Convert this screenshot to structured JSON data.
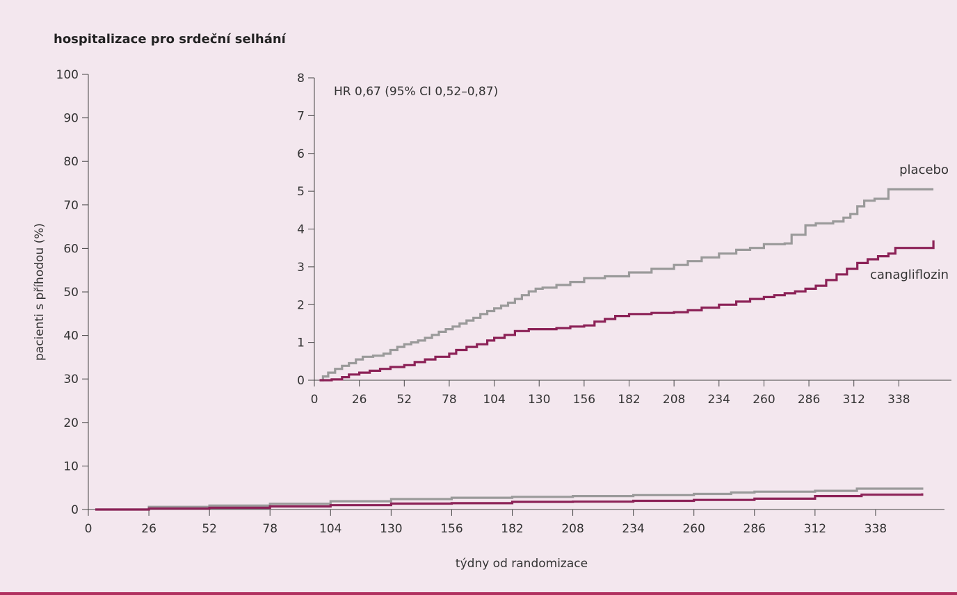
{
  "chart_data": [
    {
      "type": "line",
      "title": "hospitalizace pro srdeční selhání",
      "xlabel": "týdny od randomizace",
      "ylabel": "pacienti s příhodou (%)",
      "xlim": [
        0,
        364
      ],
      "ylim": [
        0,
        100
      ],
      "xticks": [
        0,
        26,
        52,
        78,
        104,
        130,
        156,
        182,
        208,
        234,
        260,
        286,
        312,
        338
      ],
      "yticks": [
        0,
        10,
        20,
        30,
        40,
        50,
        60,
        70,
        80,
        90,
        100
      ],
      "series": [
        {
          "key": "placebo",
          "color": "#9a9a9a",
          "x": [
            3,
            26,
            52,
            78,
            104,
            130,
            156,
            182,
            208,
            234,
            260,
            276,
            286,
            312,
            330,
            358
          ],
          "y": [
            0,
            0.6,
            0.9,
            1.3,
            1.9,
            2.4,
            2.7,
            2.9,
            3.1,
            3.3,
            3.6,
            3.9,
            4.1,
            4.3,
            4.8,
            5.05
          ]
        },
        {
          "key": "canagliflozin",
          "color": "#8c2257",
          "x": [
            3,
            26,
            52,
            78,
            104,
            130,
            156,
            182,
            208,
            234,
            260,
            286,
            312,
            332,
            358
          ],
          "y": [
            0,
            0.2,
            0.4,
            0.7,
            1.0,
            1.35,
            1.45,
            1.75,
            1.8,
            2.0,
            2.2,
            2.5,
            3.1,
            3.4,
            3.7
          ]
        }
      ]
    },
    {
      "type": "line",
      "annotation": "HR 0,67 (95% CI 0,52–0,87)",
      "xlim": [
        0,
        364
      ],
      "ylim": [
        0,
        8
      ],
      "xticks": [
        0,
        26,
        52,
        78,
        104,
        130,
        156,
        182,
        208,
        234,
        260,
        286,
        312,
        338
      ],
      "yticks": [
        0,
        1,
        2,
        3,
        4,
        5,
        6,
        7,
        8
      ],
      "series": [
        {
          "name": "placebo",
          "color": "#9a9a9a",
          "x": [
            3,
            5,
            8,
            12,
            16,
            20,
            24,
            28,
            34,
            40,
            44,
            48,
            52,
            56,
            60,
            64,
            68,
            72,
            76,
            80,
            84,
            88,
            92,
            96,
            100,
            104,
            108,
            112,
            116,
            120,
            124,
            128,
            132,
            140,
            148,
            156,
            168,
            182,
            195,
            208,
            216,
            224,
            234,
            244,
            252,
            260,
            272,
            276,
            284,
            290,
            300,
            306,
            310,
            314,
            318,
            324,
            332,
            358
          ],
          "y": [
            0,
            0.1,
            0.2,
            0.3,
            0.38,
            0.45,
            0.55,
            0.62,
            0.65,
            0.7,
            0.8,
            0.88,
            0.95,
            1.0,
            1.05,
            1.12,
            1.2,
            1.28,
            1.35,
            1.42,
            1.5,
            1.58,
            1.65,
            1.75,
            1.83,
            1.9,
            1.97,
            2.05,
            2.15,
            2.25,
            2.35,
            2.42,
            2.45,
            2.52,
            2.6,
            2.7,
            2.75,
            2.85,
            2.95,
            3.05,
            3.15,
            3.25,
            3.35,
            3.45,
            3.5,
            3.6,
            3.62,
            3.85,
            4.1,
            4.15,
            4.2,
            4.3,
            4.4,
            4.6,
            4.75,
            4.8,
            5.05,
            5.05
          ]
        },
        {
          "name": "canagliflozin",
          "color": "#8c2257",
          "x": [
            3,
            10,
            16,
            20,
            26,
            32,
            38,
            44,
            52,
            58,
            64,
            70,
            78,
            82,
            88,
            94,
            100,
            104,
            110,
            116,
            124,
            132,
            140,
            148,
            156,
            162,
            168,
            174,
            182,
            195,
            208,
            216,
            224,
            234,
            244,
            252,
            260,
            266,
            272,
            278,
            284,
            290,
            296,
            302,
            308,
            314,
            320,
            326,
            332,
            336,
            358
          ],
          "y": [
            0,
            0.02,
            0.08,
            0.15,
            0.2,
            0.25,
            0.3,
            0.35,
            0.4,
            0.48,
            0.55,
            0.62,
            0.7,
            0.8,
            0.88,
            0.95,
            1.05,
            1.12,
            1.2,
            1.3,
            1.35,
            1.35,
            1.38,
            1.42,
            1.45,
            1.55,
            1.62,
            1.7,
            1.75,
            1.78,
            1.8,
            1.85,
            1.92,
            2.0,
            2.08,
            2.15,
            2.2,
            2.25,
            2.3,
            2.35,
            2.42,
            2.5,
            2.65,
            2.8,
            2.95,
            3.1,
            3.2,
            3.28,
            3.35,
            3.5,
            3.7
          ]
        }
      ]
    }
  ]
}
